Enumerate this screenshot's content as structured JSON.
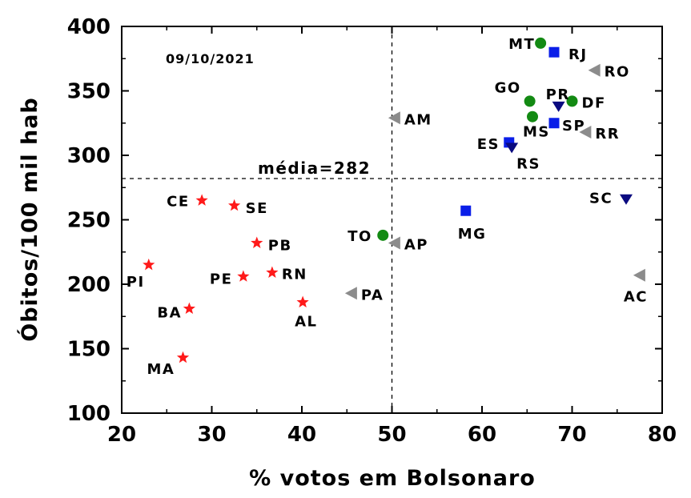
{
  "chart_data": {
    "type": "scatter",
    "xlabel": "% votos em Bolsonaro",
    "ylabel": "Óbitos/100 mil hab",
    "xlim": [
      20,
      80
    ],
    "ylim": [
      100,
      400
    ],
    "xticks": [
      "20",
      "30",
      "40",
      "50",
      "60",
      "70",
      "80"
    ],
    "yticks": [
      "100",
      "150",
      "200",
      "250",
      "300",
      "350",
      "400"
    ],
    "date_annotation": "09/10/2021",
    "mean_line": {
      "y": 282,
      "label": "média=282"
    },
    "vline": {
      "x": 50
    },
    "grid": false,
    "legend": "none",
    "marker_styles": {
      "star": "#ff1a1a",
      "circle": "#138a13",
      "square": "#0a1ee8",
      "triangle-down": "#0a0a80",
      "triangle-left": "#8c8c8c"
    },
    "points": [
      {
        "label": "MT",
        "x": 66.5,
        "y": 387,
        "marker": "circle"
      },
      {
        "label": "RJ",
        "x": 68,
        "y": 380,
        "marker": "square"
      },
      {
        "label": "RO",
        "x": 72.5,
        "y": 366,
        "marker": "triangle-left"
      },
      {
        "label": "GO",
        "x": 65.3,
        "y": 342,
        "marker": "circle"
      },
      {
        "label": "PR",
        "x": 68.5,
        "y": 338,
        "marker": "triangle-down"
      },
      {
        "label": "DF",
        "x": 70,
        "y": 342,
        "marker": "circle"
      },
      {
        "label": "MS",
        "x": 65.6,
        "y": 330,
        "marker": "circle"
      },
      {
        "label": "SP",
        "x": 68,
        "y": 325,
        "marker": "square"
      },
      {
        "label": "RR",
        "x": 71.5,
        "y": 318,
        "marker": "triangle-left"
      },
      {
        "label": "ES",
        "x": 63,
        "y": 310,
        "marker": "square"
      },
      {
        "label": "RS",
        "x": 63.3,
        "y": 306,
        "marker": "triangle-down"
      },
      {
        "label": "AM",
        "x": 50.3,
        "y": 329,
        "marker": "triangle-left"
      },
      {
        "label": "SC",
        "x": 76,
        "y": 266,
        "marker": "triangle-down"
      },
      {
        "label": "MG",
        "x": 58.2,
        "y": 257,
        "marker": "square"
      },
      {
        "label": "TO",
        "x": 49,
        "y": 238,
        "marker": "circle"
      },
      {
        "label": "AP",
        "x": 50.3,
        "y": 232,
        "marker": "triangle-left"
      },
      {
        "label": "AC",
        "x": 77.5,
        "y": 207,
        "marker": "triangle-left"
      },
      {
        "label": "PA",
        "x": 45.5,
        "y": 193,
        "marker": "triangle-left"
      },
      {
        "label": "CE",
        "x": 28.9,
        "y": 265,
        "marker": "star"
      },
      {
        "label": "SE",
        "x": 32.5,
        "y": 261,
        "marker": "star"
      },
      {
        "label": "PB",
        "x": 35,
        "y": 232,
        "marker": "star"
      },
      {
        "label": "PI",
        "x": 23,
        "y": 215,
        "marker": "star"
      },
      {
        "label": "RN",
        "x": 36.7,
        "y": 209,
        "marker": "star"
      },
      {
        "label": "PE",
        "x": 33.5,
        "y": 206,
        "marker": "star"
      },
      {
        "label": "BA",
        "x": 27.5,
        "y": 181,
        "marker": "star"
      },
      {
        "label": "AL",
        "x": 40.1,
        "y": 186,
        "marker": "star"
      },
      {
        "label": "MA",
        "x": 26.8,
        "y": 143,
        "marker": "star"
      }
    ]
  }
}
